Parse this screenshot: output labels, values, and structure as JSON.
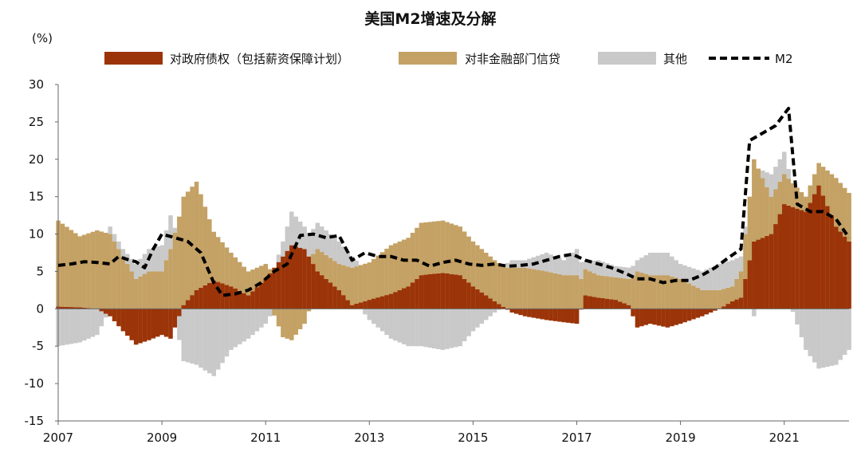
{
  "chart_data": {
    "type": "bar",
    "stacked": true,
    "title": "美国M2增速及分解",
    "ylabel": "(%)",
    "xlabel": "",
    "xlim": [
      "2007-01",
      "2022-04"
    ],
    "ylim": [
      -15,
      30
    ],
    "yticks": [
      "30",
      "25",
      "20",
      "15",
      "10",
      "5",
      "0",
      "-5",
      "-10",
      "-15"
    ],
    "xticks": [
      {
        "label": "2007",
        "x": "2007-01"
      },
      {
        "label": "2009",
        "x": "2009-01"
      },
      {
        "label": "2011",
        "x": "2011-01"
      },
      {
        "label": "2013",
        "x": "2013-01"
      },
      {
        "label": "2015",
        "x": "2015-01"
      },
      {
        "label": "2017",
        "x": "2017-01"
      },
      {
        "label": "2019",
        "x": "2019-01"
      },
      {
        "label": "2021",
        "x": "2021-01"
      }
    ],
    "grid": false,
    "legend_position": "top",
    "colors": {
      "gov": "#9b3408",
      "nonfin": "#c4a164",
      "other": "#c9c9c9",
      "m2": "#000000"
    },
    "series": [
      {
        "name": "对政府债权（包括薪资保障计划）",
        "kind": "bar",
        "color_key": "gov",
        "points": [
          [
            "2007-01",
            0.3
          ],
          [
            "2007-06",
            0.2
          ],
          [
            "2007-10",
            0.0
          ],
          [
            "2008-01",
            -1.0
          ],
          [
            "2008-04",
            -3.0
          ],
          [
            "2008-07",
            -4.8
          ],
          [
            "2008-10",
            -4.2
          ],
          [
            "2009-01",
            -3.5
          ],
          [
            "2009-03",
            -4.0
          ],
          [
            "2009-06",
            0.5
          ],
          [
            "2009-09",
            2.5
          ],
          [
            "2010-01",
            3.8
          ],
          [
            "2010-05",
            3.0
          ],
          [
            "2010-09",
            1.8
          ],
          [
            "2011-01",
            4.0
          ],
          [
            "2011-05",
            7.0
          ],
          [
            "2011-07",
            8.5
          ],
          [
            "2011-10",
            8.0
          ],
          [
            "2012-01",
            5.0
          ],
          [
            "2012-06",
            2.5
          ],
          [
            "2012-09",
            0.5
          ],
          [
            "2013-01",
            1.2
          ],
          [
            "2013-06",
            2.0
          ],
          [
            "2013-10",
            3.0
          ],
          [
            "2014-01",
            4.5
          ],
          [
            "2014-06",
            4.8
          ],
          [
            "2014-10",
            4.5
          ],
          [
            "2015-01",
            3.0
          ],
          [
            "2015-06",
            1.0
          ],
          [
            "2015-10",
            -0.5
          ],
          [
            "2016-01",
            -1.0
          ],
          [
            "2016-06",
            -1.5
          ],
          [
            "2016-10",
            -1.8
          ],
          [
            "2017-01",
            -2.0
          ],
          [
            "2017-03",
            1.8
          ],
          [
            "2017-06",
            1.5
          ],
          [
            "2017-10",
            1.2
          ],
          [
            "2018-01",
            0.5
          ],
          [
            "2018-03",
            -2.5
          ],
          [
            "2018-06",
            -2.0
          ],
          [
            "2018-10",
            -2.5
          ],
          [
            "2019-01",
            -2.0
          ],
          [
            "2019-06",
            -1.0
          ],
          [
            "2019-10",
            0.0
          ],
          [
            "2020-01",
            1.0
          ],
          [
            "2020-03",
            1.5
          ],
          [
            "2020-06",
            9.0
          ],
          [
            "2020-10",
            10.0
          ],
          [
            "2021-01",
            14.0
          ],
          [
            "2021-06",
            13.0
          ],
          [
            "2021-09",
            16.5
          ],
          [
            "2022-01",
            11.0
          ],
          [
            "2022-04",
            9.0
          ]
        ]
      },
      {
        "name": "对非金融部门信贷",
        "kind": "bar",
        "color_key": "nonfin",
        "points": [
          [
            "2007-01",
            11.5
          ],
          [
            "2007-06",
            9.5
          ],
          [
            "2007-10",
            10.5
          ],
          [
            "2008-01",
            10.0
          ],
          [
            "2008-04",
            7.0
          ],
          [
            "2008-07",
            4.0
          ],
          [
            "2008-10",
            5.0
          ],
          [
            "2009-01",
            5.0
          ],
          [
            "2009-03",
            8.0
          ],
          [
            "2009-06",
            14.5
          ],
          [
            "2009-09",
            14.5
          ],
          [
            "2010-01",
            6.5
          ],
          [
            "2010-05",
            4.5
          ],
          [
            "2010-09",
            3.2
          ],
          [
            "2011-01",
            2.0
          ],
          [
            "2011-05",
            -3.8
          ],
          [
            "2011-07",
            -4.2
          ],
          [
            "2011-10",
            -2.0
          ],
          [
            "2012-01",
            3.0
          ],
          [
            "2012-06",
            3.5
          ],
          [
            "2012-09",
            5.0
          ],
          [
            "2013-01",
            5.0
          ],
          [
            "2013-06",
            6.5
          ],
          [
            "2013-10",
            6.5
          ],
          [
            "2014-01",
            7.0
          ],
          [
            "2014-06",
            7.0
          ],
          [
            "2014-10",
            6.5
          ],
          [
            "2015-01",
            6.0
          ],
          [
            "2015-06",
            5.5
          ],
          [
            "2015-10",
            5.5
          ],
          [
            "2016-01",
            5.5
          ],
          [
            "2016-06",
            5.0
          ],
          [
            "2016-10",
            4.5
          ],
          [
            "2017-01",
            4.5
          ],
          [
            "2017-03",
            3.5
          ],
          [
            "2017-06",
            3.0
          ],
          [
            "2017-10",
            3.0
          ],
          [
            "2018-01",
            3.5
          ],
          [
            "2018-03",
            5.0
          ],
          [
            "2018-06",
            4.5
          ],
          [
            "2018-10",
            4.5
          ],
          [
            "2019-01",
            4.0
          ],
          [
            "2019-06",
            2.5
          ],
          [
            "2019-10",
            2.5
          ],
          [
            "2020-01",
            2.0
          ],
          [
            "2020-03",
            3.5
          ],
          [
            "2020-06",
            11.0
          ],
          [
            "2020-10",
            5.0
          ],
          [
            "2021-01",
            4.0
          ],
          [
            "2021-06",
            2.0
          ],
          [
            "2021-09",
            3.0
          ],
          [
            "2022-01",
            6.5
          ],
          [
            "2022-04",
            6.5
          ]
        ]
      },
      {
        "name": "其他",
        "kind": "bar",
        "color_key": "other",
        "points": [
          [
            "2007-01",
            -5.0
          ],
          [
            "2007-06",
            -4.5
          ],
          [
            "2007-10",
            -3.5
          ],
          [
            "2008-01",
            1.0
          ],
          [
            "2008-04",
            1.0
          ],
          [
            "2008-07",
            2.0
          ],
          [
            "2008-10",
            3.0
          ],
          [
            "2009-01",
            3.5
          ],
          [
            "2009-03",
            4.5
          ],
          [
            "2009-06",
            -7.0
          ],
          [
            "2009-09",
            -7.5
          ],
          [
            "2010-01",
            -9.0
          ],
          [
            "2010-05",
            -5.5
          ],
          [
            "2010-09",
            -4.0
          ],
          [
            "2011-01",
            -2.0
          ],
          [
            "2011-05",
            2.0
          ],
          [
            "2011-07",
            4.5
          ],
          [
            "2011-10",
            3.0
          ],
          [
            "2012-01",
            3.5
          ],
          [
            "2012-06",
            3.0
          ],
          [
            "2012-09",
            1.5
          ],
          [
            "2013-01",
            -1.5
          ],
          [
            "2013-06",
            -4.0
          ],
          [
            "2013-10",
            -5.0
          ],
          [
            "2014-01",
            -5.0
          ],
          [
            "2014-06",
            -5.5
          ],
          [
            "2014-10",
            -5.0
          ],
          [
            "2015-01",
            -3.0
          ],
          [
            "2015-06",
            -0.5
          ],
          [
            "2015-10",
            1.0
          ],
          [
            "2016-01",
            1.0
          ],
          [
            "2016-06",
            2.5
          ],
          [
            "2016-10",
            2.0
          ],
          [
            "2017-01",
            3.5
          ],
          [
            "2017-03",
            1.0
          ],
          [
            "2017-06",
            2.0
          ],
          [
            "2017-10",
            1.5
          ],
          [
            "2018-01",
            1.5
          ],
          [
            "2018-03",
            1.5
          ],
          [
            "2018-06",
            3.0
          ],
          [
            "2018-10",
            3.0
          ],
          [
            "2019-01",
            2.0
          ],
          [
            "2019-06",
            2.5
          ],
          [
            "2019-10",
            3.5
          ],
          [
            "2020-01",
            3.5
          ],
          [
            "2020-03",
            2.0
          ],
          [
            "2020-06",
            -1.0
          ],
          [
            "2020-10",
            3.0
          ],
          [
            "2021-01",
            3.0
          ],
          [
            "2021-06",
            -5.5
          ],
          [
            "2021-09",
            -8.0
          ],
          [
            "2022-01",
            -7.5
          ],
          [
            "2022-04",
            -5.5
          ]
        ]
      },
      {
        "name": "M2",
        "kind": "line",
        "color_key": "m2",
        "dashed": true,
        "points": [
          [
            "2007-01",
            5.8
          ],
          [
            "2007-04",
            6.0
          ],
          [
            "2007-07",
            6.3
          ],
          [
            "2007-10",
            6.2
          ],
          [
            "2008-01",
            6.0
          ],
          [
            "2008-03",
            7.0
          ],
          [
            "2008-05",
            6.6
          ],
          [
            "2008-07",
            6.3
          ],
          [
            "2008-09",
            5.5
          ],
          [
            "2008-11",
            8.0
          ],
          [
            "2009-01",
            10.0
          ],
          [
            "2009-04",
            9.5
          ],
          [
            "2009-07",
            9.0
          ],
          [
            "2009-10",
            7.5
          ],
          [
            "2010-01",
            3.5
          ],
          [
            "2010-03",
            1.8
          ],
          [
            "2010-06",
            2.0
          ],
          [
            "2010-09",
            2.5
          ],
          [
            "2010-12",
            3.5
          ],
          [
            "2011-03",
            5.0
          ],
          [
            "2011-06",
            6.0
          ],
          [
            "2011-09",
            9.8
          ],
          [
            "2011-12",
            10.0
          ],
          [
            "2012-03",
            9.5
          ],
          [
            "2012-06",
            9.8
          ],
          [
            "2012-09",
            6.5
          ],
          [
            "2012-12",
            7.5
          ],
          [
            "2013-03",
            7.0
          ],
          [
            "2013-06",
            7.0
          ],
          [
            "2013-09",
            6.5
          ],
          [
            "2013-12",
            6.5
          ],
          [
            "2014-03",
            5.7
          ],
          [
            "2014-06",
            6.2
          ],
          [
            "2014-09",
            6.5
          ],
          [
            "2014-12",
            6.0
          ],
          [
            "2015-03",
            5.8
          ],
          [
            "2015-06",
            6.0
          ],
          [
            "2015-09",
            5.7
          ],
          [
            "2015-12",
            5.8
          ],
          [
            "2016-03",
            6.0
          ],
          [
            "2016-06",
            6.5
          ],
          [
            "2016-09",
            7.0
          ],
          [
            "2016-12",
            7.3
          ],
          [
            "2017-03",
            6.5
          ],
          [
            "2017-06",
            6.0
          ],
          [
            "2017-09",
            5.5
          ],
          [
            "2017-12",
            4.8
          ],
          [
            "2018-03",
            4.0
          ],
          [
            "2018-06",
            4.0
          ],
          [
            "2018-09",
            3.5
          ],
          [
            "2018-12",
            3.8
          ],
          [
            "2019-03",
            3.8
          ],
          [
            "2019-06",
            4.5
          ],
          [
            "2019-09",
            5.5
          ],
          [
            "2019-12",
            6.8
          ],
          [
            "2020-03",
            8.0
          ],
          [
            "2020-05",
            22.5
          ],
          [
            "2020-08",
            23.5
          ],
          [
            "2020-11",
            24.5
          ],
          [
            "2021-02",
            26.8
          ],
          [
            "2021-04",
            14.0
          ],
          [
            "2021-07",
            13.0
          ],
          [
            "2021-10",
            13.0
          ],
          [
            "2022-01",
            12.0
          ],
          [
            "2022-04",
            9.5
          ]
        ]
      }
    ]
  }
}
